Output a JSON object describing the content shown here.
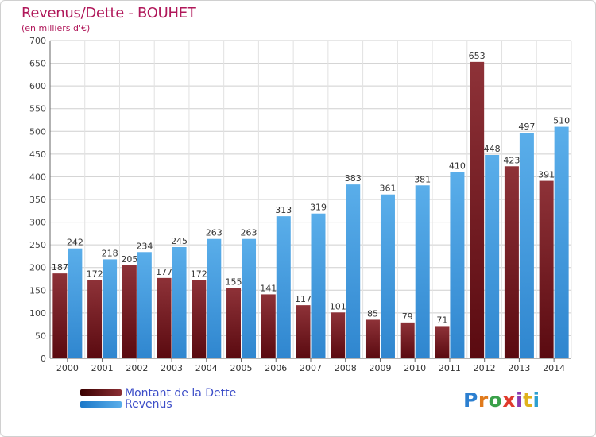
{
  "title": "Revenus/Dette - BOUHET",
  "subtitle": "(en milliers d'€)",
  "logo_text": "Proxiti",
  "chart_data": {
    "type": "bar",
    "categories": [
      "2000",
      "2001",
      "2002",
      "2003",
      "2004",
      "2005",
      "2006",
      "2007",
      "2008",
      "2009",
      "2010",
      "2011",
      "2012",
      "2013",
      "2014"
    ],
    "series": [
      {
        "name": "Montant de la Dette",
        "values": [
          187,
          172,
          205,
          177,
          172,
          155,
          141,
          117,
          101,
          85,
          79,
          71,
          653,
          423,
          391
        ],
        "color": "#8b2e33"
      },
      {
        "name": "Revenus",
        "values": [
          242,
          218,
          234,
          245,
          263,
          263,
          313,
          319,
          383,
          361,
          381,
          410,
          448,
          497,
          510
        ],
        "color": "#4a9fe0"
      }
    ],
    "ylim": [
      0,
      700
    ],
    "ytick_step": 50,
    "grid": true,
    "legend": "bottom-left"
  }
}
